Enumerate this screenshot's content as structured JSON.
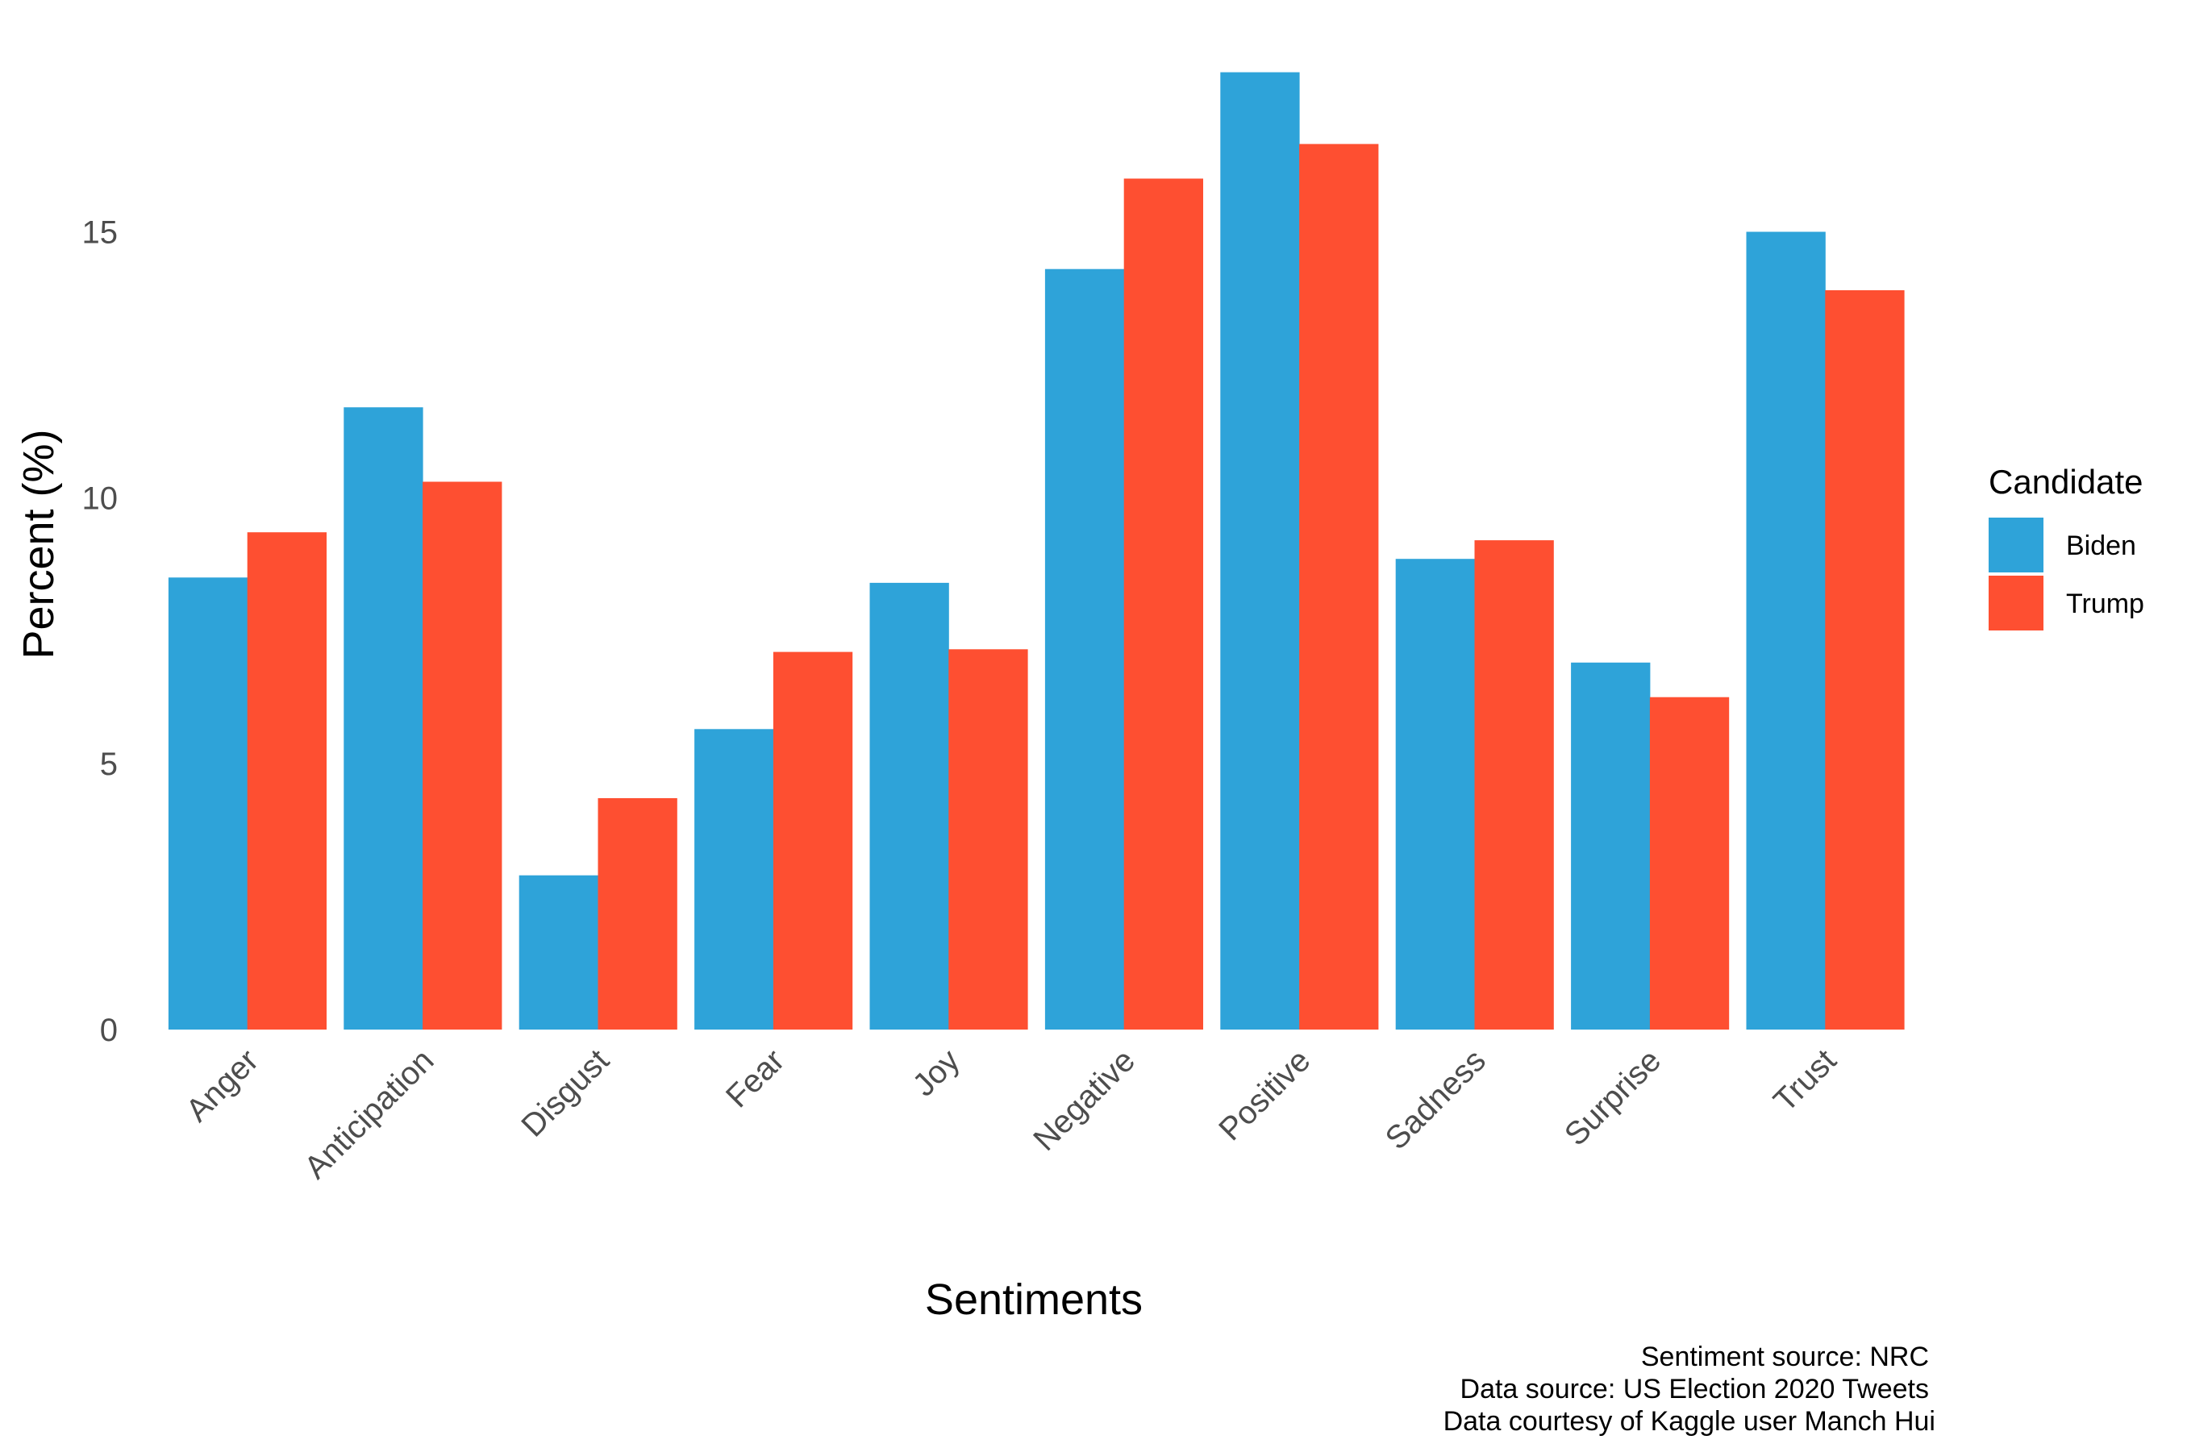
{
  "chart_data": {
    "type": "bar",
    "categories": [
      "Anger",
      "Anticipation",
      "Disgust",
      "Fear",
      "Joy",
      "Negative",
      "Positive",
      "Sadness",
      "Surprise",
      "Trust"
    ],
    "series": [
      {
        "name": "Biden",
        "color": "#2ea3d9",
        "values": [
          8.5,
          11.7,
          2.9,
          5.65,
          8.4,
          14.3,
          18.0,
          8.85,
          6.9,
          15.0
        ]
      },
      {
        "name": "Trump",
        "color": "#fe4f31",
        "values": [
          9.35,
          10.3,
          4.35,
          7.1,
          7.15,
          16.0,
          16.65,
          9.2,
          6.25,
          13.9
        ]
      }
    ],
    "xlabel": "Sentiments",
    "ylabel": "Percent (%)",
    "ylim": [
      0,
      18.6
    ],
    "yticks": [
      0,
      5,
      10,
      15
    ],
    "grid": false,
    "legend": {
      "title": "Candidate",
      "placement": "right"
    },
    "caption": [
      "Sentiment source: NRC",
      "Data source: US Election 2020 Tweets",
      "Data courtesy of Kaggle user Manch Hui"
    ]
  }
}
